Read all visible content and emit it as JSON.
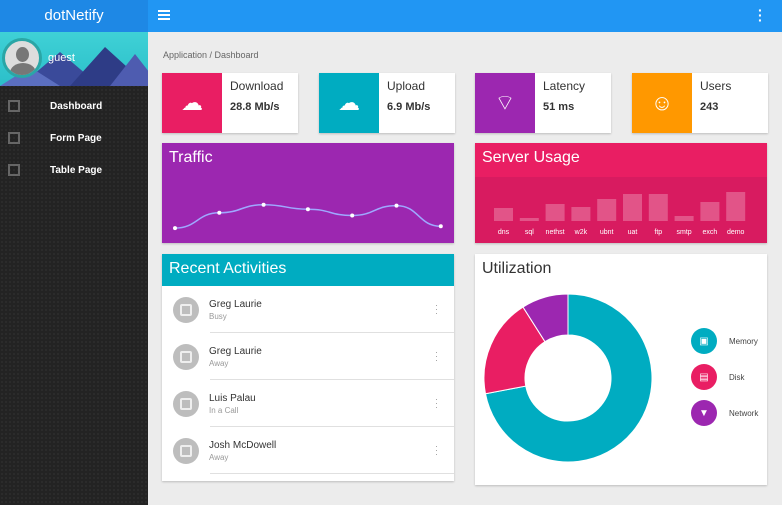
{
  "sidebar": {
    "brand": "dotNetify",
    "user": "guest",
    "items": [
      {
        "label": "Dashboard",
        "icon": "bar-chart-icon"
      },
      {
        "label": "Form Page",
        "icon": "form-icon"
      },
      {
        "label": "Table Page",
        "icon": "grid-icon"
      }
    ]
  },
  "breadcrumb": "Application / Dashboard",
  "stats": [
    {
      "label": "Download",
      "value": "28.8 Mb/s",
      "icon": "cloud-download-icon",
      "color": "#e91e63"
    },
    {
      "label": "Upload",
      "value": "6.9 Mb/s",
      "icon": "cloud-upload-icon",
      "color": "#00acc1"
    },
    {
      "label": "Latency",
      "value": "51 ms",
      "icon": "wifi-off-icon",
      "color": "#9c27b0"
    },
    {
      "label": "Users",
      "value": "243",
      "icon": "face-icon",
      "color": "#ff9800"
    }
  ],
  "traffic": {
    "title": "Traffic",
    "chart_data": {
      "type": "line",
      "values": [
        11,
        28,
        37,
        32,
        25,
        36,
        13
      ]
    }
  },
  "server": {
    "title": "Server Usage",
    "chart_data": {
      "type": "bar",
      "categories": [
        "dns",
        "sql",
        "nethst",
        "w2k",
        "ubnt",
        "uat",
        "ftp",
        "smtp",
        "exch",
        "demo"
      ],
      "values": [
        13,
        3,
        17,
        14,
        22,
        27,
        27,
        5,
        19,
        29
      ]
    }
  },
  "activities": {
    "title": "Recent Activities",
    "items": [
      {
        "name": "Greg Laurie",
        "status": "Busy"
      },
      {
        "name": "Greg Laurie",
        "status": "Away"
      },
      {
        "name": "Luis Palau",
        "status": "In a Call"
      },
      {
        "name": "Josh McDowell",
        "status": "Away"
      }
    ]
  },
  "utilization": {
    "title": "Utilization",
    "chart_data": {
      "type": "pie",
      "labels": [
        "Memory",
        "Disk",
        "Network"
      ],
      "values": [
        72,
        19,
        9
      ],
      "colors": [
        "#00acc1",
        "#e91e63",
        "#9c27b0"
      ]
    }
  }
}
